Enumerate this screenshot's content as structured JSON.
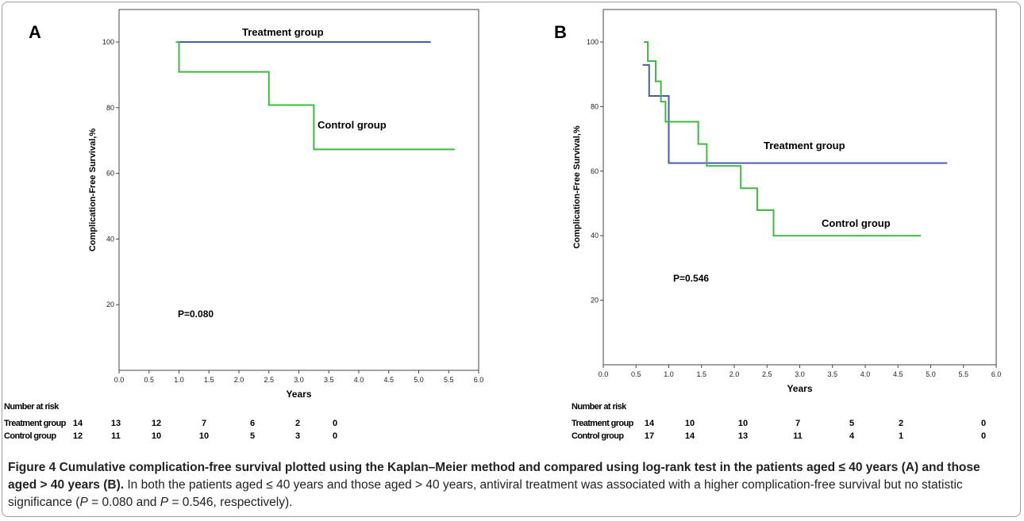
{
  "chart_data": [
    {
      "type": "line",
      "panel_label": "A",
      "xlabel": "Years",
      "ylabel": "Complication-Free Survival,%",
      "xlim": [
        0,
        6
      ],
      "ylim": [
        0,
        100
      ],
      "x_ticks": [
        "0.0",
        "0.5",
        "1.0",
        "1.5",
        "2.0",
        "2.5",
        "3.0",
        "3.5",
        "4.0",
        "4.5",
        "5.0",
        "5.5",
        "6.0"
      ],
      "y_ticks": [
        "20",
        "40",
        "60",
        "80",
        "100"
      ],
      "p_value": "P=0.080",
      "series": [
        {
          "name": "Treatment group",
          "color": "#4a5ca8",
          "steps": [
            [
              0.95,
              100
            ],
            [
              5.2,
              100
            ]
          ]
        },
        {
          "name": "Control group",
          "color": "#3fb93f",
          "steps": [
            [
              0.95,
              100
            ],
            [
              1.0,
              90.9
            ],
            [
              2.5,
              80.8
            ],
            [
              3.25,
              67.3
            ],
            [
              5.6,
              67.3
            ]
          ]
        }
      ],
      "risk_table": {
        "header": "Number at risk",
        "rows": [
          {
            "label": "Treatment group",
            "values": [
              "14",
              "13",
              "12",
              "7",
              "6",
              "2",
              "0"
            ]
          },
          {
            "label": "Control group",
            "values": [
              "12",
              "11",
              "10",
              "10",
              "5",
              "3",
              "0"
            ]
          }
        ]
      }
    },
    {
      "type": "line",
      "panel_label": "B",
      "xlabel": "Years",
      "ylabel": "Complication-Free Survival,%",
      "xlim": [
        0,
        6
      ],
      "ylim": [
        0,
        100
      ],
      "x_ticks": [
        "0.0",
        "0.5",
        "1.0",
        "1.5",
        "2.0",
        "2.5",
        "3.0",
        "3.5",
        "4.0",
        "4.5",
        "5.0",
        "5.5",
        "6.0"
      ],
      "y_ticks": [
        "20",
        "40",
        "60",
        "80",
        "100"
      ],
      "p_value": "P=0.546",
      "series": [
        {
          "name": "Treatment group",
          "color": "#4a5ca8",
          "steps": [
            [
              0.6,
              92.9
            ],
            [
              0.7,
              83.3
            ],
            [
              1.0,
              62.5
            ],
            [
              5.25,
              62.5
            ]
          ]
        },
        {
          "name": "Control group",
          "color": "#3fb93f",
          "steps": [
            [
              0.62,
              100
            ],
            [
              0.68,
              94.1
            ],
            [
              0.8,
              87.8
            ],
            [
              0.88,
              81.5
            ],
            [
              0.95,
              75.3
            ],
            [
              1.45,
              68.4
            ],
            [
              1.58,
              61.6
            ],
            [
              2.1,
              54.7
            ],
            [
              2.35,
              47.9
            ],
            [
              2.6,
              40.0
            ],
            [
              4.85,
              40.0
            ]
          ]
        }
      ],
      "risk_table": {
        "header": "Number at risk",
        "rows": [
          {
            "label": "Treatment group",
            "values": [
              "14",
              "10",
              "10",
              "7",
              "5",
              "2",
              "0"
            ]
          },
          {
            "label": "Control group",
            "values": [
              "17",
              "14",
              "13",
              "11",
              "4",
              "1",
              "0"
            ]
          }
        ]
      }
    }
  ],
  "caption": {
    "lead": "Figure 4 Cumulative complication-free survival plotted using the Kaplan–Meier method and compared using log-rank test in the patients aged ≤ 40 years (A) and those aged > 40 years (B).",
    "body_1": " In both the patients aged ≤ 40 years and those aged > 40 years, antiviral treatment was associated with a higher complication-free survival but no statistic significance (",
    "p_symbol_1": "P",
    "body_2": " = 0.080 and ",
    "p_symbol_2": "P",
    "body_3": " = 0.546, respectively)."
  }
}
